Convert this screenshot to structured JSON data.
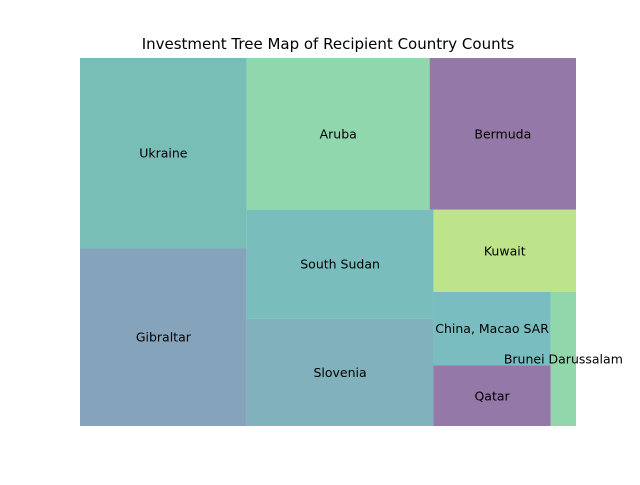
{
  "chart_data": {
    "type": "treemap",
    "title": "Investment Tree Map of Recipient Country Counts",
    "xlabel": "",
    "ylabel": "",
    "grid": false,
    "legend": "none",
    "items": [
      {
        "label": "Ukraine",
        "value": 103,
        "color": "#4fa8a0"
      },
      {
        "label": "Gibraltar",
        "value": 96,
        "color": "#5f87a6"
      },
      {
        "label": "Aruba",
        "value": 90,
        "color": "#6ecb94"
      },
      {
        "label": "Bermuda",
        "value": 72,
        "color": "#734f8c"
      },
      {
        "label": "South Sudan",
        "value": 66,
        "color": "#4fa8a8"
      },
      {
        "label": "Slovenia",
        "value": 65,
        "color": "#5898a8"
      },
      {
        "label": "Kuwait",
        "value": 38,
        "color": "#a8dc66"
      },
      {
        "label": "China, Macao SAR",
        "value": 28,
        "color": "#4fa8ac"
      },
      {
        "label": "Qatar",
        "value": 23,
        "color": "#734f8c"
      },
      {
        "label": "Brunei Darussalam",
        "value": 11,
        "color": "#6ecb90"
      }
    ]
  }
}
